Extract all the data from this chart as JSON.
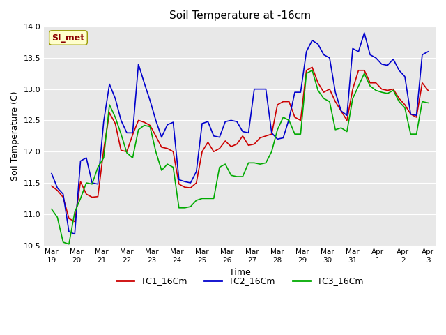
{
  "title": "Soil Temperature at -16cm",
  "xlabel": "Time",
  "ylabel": "Soil Temperature (C)",
  "ylim": [
    10.5,
    14.0
  ],
  "background_color": "#ffffff",
  "plot_bg_color": "#e8e8e8",
  "grid_color": "#ffffff",
  "annotation_text": "SI_met",
  "annotation_color": "#8b0000",
  "annotation_bg": "#ffffcc",
  "x_tick_labels": [
    "Mar 19",
    "Mar 20",
    "Mar 21",
    "Mar 22",
    "Mar 23",
    "Mar 24",
    "Mar 25",
    "Mar 26",
    "Mar 27",
    "Mar 28",
    "Mar 29",
    "Mar 30",
    "Mar 31",
    "Apr 1",
    "Apr 2",
    "Apr 3"
  ],
  "series": {
    "TC1_16Cm": {
      "color": "#cc0000",
      "data": [
        11.45,
        11.38,
        11.27,
        10.93,
        10.88,
        11.52,
        11.32,
        11.27,
        11.28,
        12.03,
        12.62,
        12.45,
        12.02,
        12.0,
        12.27,
        12.5,
        12.47,
        12.42,
        12.25,
        12.07,
        12.05,
        12.0,
        11.48,
        11.43,
        11.42,
        11.5,
        12.0,
        12.15,
        12.0,
        12.05,
        12.17,
        12.08,
        12.12,
        12.25,
        12.1,
        12.12,
        12.22,
        12.25,
        12.28,
        12.75,
        12.8,
        12.8,
        12.55,
        12.5,
        13.3,
        13.35,
        13.1,
        12.95,
        13.0,
        12.8,
        12.65,
        12.5,
        13.0,
        13.3,
        13.3,
        13.1,
        13.1,
        13.0,
        12.98,
        13.0,
        12.85,
        12.75,
        12.6,
        12.55,
        13.1,
        12.98
      ]
    },
    "TC2_16Cm": {
      "color": "#0000cc",
      "data": [
        11.65,
        11.42,
        11.32,
        10.72,
        10.68,
        11.85,
        11.9,
        11.5,
        11.48,
        12.48,
        13.08,
        12.85,
        12.5,
        12.3,
        12.3,
        13.4,
        13.1,
        12.82,
        12.5,
        12.23,
        12.43,
        12.47,
        11.55,
        11.52,
        11.5,
        11.68,
        12.45,
        12.48,
        12.25,
        12.23,
        12.48,
        12.5,
        12.48,
        12.32,
        12.3,
        13.0,
        13.0,
        13.0,
        12.3,
        12.2,
        12.22,
        12.52,
        12.95,
        12.95,
        13.6,
        13.78,
        13.72,
        13.55,
        13.5,
        12.95,
        12.65,
        12.58,
        13.65,
        13.6,
        13.9,
        13.55,
        13.5,
        13.4,
        13.38,
        13.48,
        13.3,
        13.2,
        12.6,
        12.58,
        13.55,
        13.6
      ]
    },
    "TC3_16Cm": {
      "color": "#00aa00",
      "data": [
        11.08,
        10.95,
        10.55,
        10.52,
        11.03,
        11.25,
        11.5,
        11.48,
        11.75,
        11.9,
        12.75,
        12.55,
        12.28,
        11.98,
        11.9,
        12.35,
        12.42,
        12.4,
        12.0,
        11.7,
        11.8,
        11.75,
        11.1,
        11.1,
        11.12,
        11.22,
        11.25,
        11.25,
        11.25,
        11.75,
        11.8,
        11.62,
        11.6,
        11.6,
        11.82,
        11.82,
        11.8,
        11.82,
        12.0,
        12.35,
        12.55,
        12.5,
        12.28,
        12.28,
        13.25,
        13.3,
        12.98,
        12.85,
        12.8,
        12.35,
        12.38,
        12.32,
        12.85,
        13.05,
        13.25,
        13.05,
        12.98,
        12.95,
        12.93,
        12.98,
        12.8,
        12.7,
        12.28,
        12.28,
        12.8,
        12.78
      ]
    }
  },
  "legend": [
    {
      "label": "TC1_16Cm",
      "color": "#cc0000"
    },
    {
      "label": "TC2_16Cm",
      "color": "#0000cc"
    },
    {
      "label": "TC3_16Cm",
      "color": "#00aa00"
    }
  ]
}
